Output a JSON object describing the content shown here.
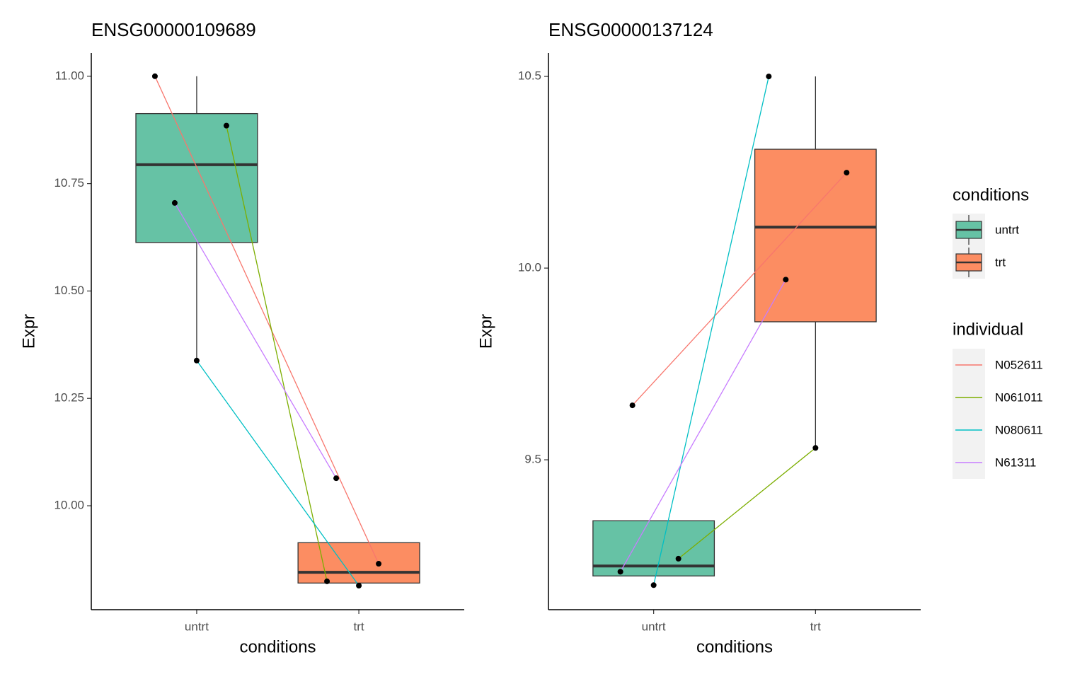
{
  "legend": {
    "position": "right",
    "box_title": "conditions",
    "line_title": "individual"
  },
  "chart_data": [
    {
      "type": "box",
      "title": "ENSG00000109689",
      "x_label": "conditions",
      "y_label": "Expr",
      "categories": [
        "untrt",
        "trt"
      ],
      "box_colors": [
        "#66c2a5",
        "#fc8d62"
      ],
      "boxes": [
        {
          "whisker_low": 10.338,
          "q1": 10.613,
          "median": 10.794,
          "q3": 10.913,
          "whisker_high": 11.0
        },
        {
          "whisker_low": 9.82,
          "q1": 9.82,
          "median": 9.845,
          "q3": 9.914,
          "whisker_high": 9.914
        }
      ],
      "series": [
        {
          "name": "N052611",
          "color": "#f8766d",
          "values": [
            11.0,
            9.865
          ]
        },
        {
          "name": "N061011",
          "color": "#7cae00",
          "values": [
            10.885,
            9.824
          ]
        },
        {
          "name": "N080611",
          "color": "#00bfc4",
          "values": [
            10.338,
            9.814
          ]
        },
        {
          "name": "N61311",
          "color": "#c77cff",
          "values": [
            10.705,
            10.064
          ]
        }
      ],
      "ylim": [
        9.758,
        11.054
      ],
      "yticks": [
        {
          "value": 10,
          "label": "10.00"
        },
        {
          "value": 10.25,
          "label": "10.25"
        },
        {
          "value": 10.5,
          "label": "10.50"
        },
        {
          "value": 10.75,
          "label": "10.75"
        },
        {
          "value": 11,
          "label": "11.00"
        }
      ]
    },
    {
      "type": "box",
      "title": "ENSG00000137124",
      "x_label": "conditions",
      "y_label": "Expr",
      "categories": [
        "untrt",
        "trt"
      ],
      "box_colors": [
        "#66c2a5",
        "#fc8d62"
      ],
      "boxes": [
        {
          "whisker_low": 9.197,
          "q1": 9.197,
          "median": 9.223,
          "q3": 9.341,
          "whisker_high": 9.341
        },
        {
          "whisker_low": 9.531,
          "q1": 9.86,
          "median": 10.107,
          "q3": 10.31,
          "whisker_high": 10.5
        }
      ],
      "series": [
        {
          "name": "N052611",
          "color": "#f8766d",
          "values": [
            9.642,
            10.249
          ]
        },
        {
          "name": "N061011",
          "color": "#7cae00",
          "values": [
            9.242,
            9.531
          ]
        },
        {
          "name": "N080611",
          "color": "#00bfc4",
          "values": [
            9.173,
            10.5
          ]
        },
        {
          "name": "N61311",
          "color": "#c77cff",
          "values": [
            9.208,
            9.97
          ]
        }
      ],
      "ylim": [
        9.109,
        10.561
      ],
      "yticks": [
        {
          "value": 9.5,
          "label": "9.5"
        },
        {
          "value": 10,
          "label": "10.0"
        },
        {
          "value": 10.5,
          "label": "10.5"
        }
      ]
    }
  ]
}
